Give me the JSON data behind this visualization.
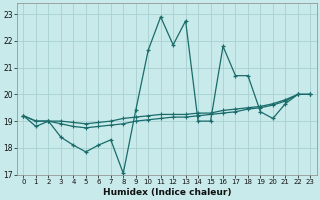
{
  "xlabel": "Humidex (Indice chaleur)",
  "background_color": "#c8eaea",
  "grid_color": "#a8d0d0",
  "line_color": "#1a6b6b",
  "xlim": [
    -0.5,
    23.5
  ],
  "ylim": [
    17,
    23.4
  ],
  "yticks": [
    17,
    18,
    19,
    20,
    21,
    22,
    23
  ],
  "xticks": [
    0,
    1,
    2,
    3,
    4,
    5,
    6,
    7,
    8,
    9,
    10,
    11,
    12,
    13,
    14,
    15,
    16,
    17,
    18,
    19,
    20,
    21,
    22,
    23
  ],
  "series": {
    "main": {
      "x": [
        0,
        1,
        2,
        3,
        4,
        5,
        6,
        7,
        8,
        9,
        10,
        11,
        12,
        13,
        14,
        15,
        16,
        17,
        18,
        19,
        20,
        21,
        22,
        23
      ],
      "y": [
        19.2,
        18.8,
        19.0,
        18.4,
        18.1,
        17.85,
        18.1,
        18.3,
        17.05,
        19.4,
        21.65,
        22.9,
        21.85,
        22.75,
        19.0,
        19.0,
        21.8,
        20.7,
        20.7,
        19.35,
        19.1,
        19.65,
        20.0,
        20.0
      ]
    },
    "line2": {
      "x": [
        0,
        1,
        2,
        3,
        4,
        5,
        6,
        7,
        8,
        9,
        10,
        11,
        12,
        13,
        14,
        15,
        16,
        17,
        18,
        19,
        20,
        21,
        22,
        23
      ],
      "y": [
        19.2,
        19.0,
        19.0,
        18.9,
        18.8,
        18.75,
        18.8,
        18.85,
        18.9,
        19.0,
        19.05,
        19.1,
        19.15,
        19.15,
        19.2,
        19.25,
        19.3,
        19.35,
        19.45,
        19.5,
        19.6,
        19.75,
        20.0,
        20.0
      ]
    },
    "line3": {
      "x": [
        0,
        1,
        2,
        3,
        4,
        5,
        6,
        7,
        8,
        9,
        10,
        11,
        12,
        13,
        14,
        15,
        16,
        17,
        18,
        19,
        20,
        21,
        22,
        23
      ],
      "y": [
        19.2,
        19.0,
        19.0,
        19.0,
        18.95,
        18.9,
        18.95,
        19.0,
        19.1,
        19.15,
        19.2,
        19.25,
        19.25,
        19.25,
        19.3,
        19.3,
        19.4,
        19.45,
        19.5,
        19.55,
        19.65,
        19.8,
        20.0,
        20.0
      ]
    }
  }
}
